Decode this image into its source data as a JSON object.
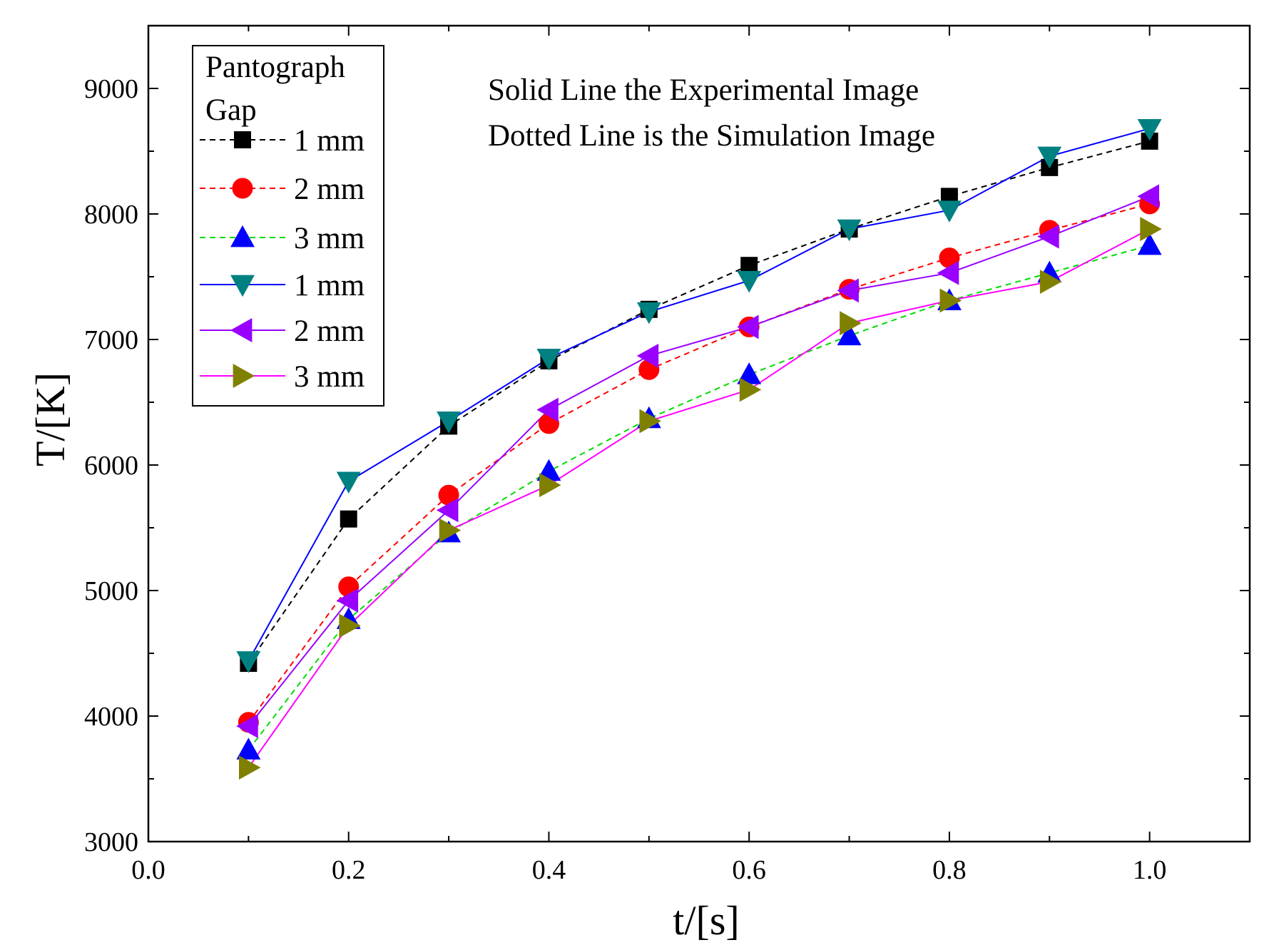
{
  "chart_data": {
    "type": "line",
    "xlabel": "t/[s]",
    "ylabel": "T/[K]",
    "xlim": [
      0.0,
      1.1
    ],
    "ylim": [
      3000,
      9500
    ],
    "x_ticks": [
      "0.0",
      "0.2",
      "0.4",
      "0.6",
      "0.8",
      "1.0"
    ],
    "y_ticks": [
      "3000",
      "4000",
      "5000",
      "6000",
      "7000",
      "8000",
      "9000"
    ],
    "legend_title": [
      "Pantograph",
      "Gap"
    ],
    "legend_position": "top-left",
    "annotations": [
      "Solid Line the  Experimental Image",
      "Dotted Line is the Simulation Image"
    ],
    "x": [
      0.1,
      0.2,
      0.3,
      0.4,
      0.5,
      0.6,
      0.7,
      0.8,
      0.9,
      1.0
    ],
    "series": [
      {
        "name": "1 mm",
        "color": "#000000",
        "marker": "square",
        "dashed": true,
        "values": [
          4420,
          5570,
          6310,
          6830,
          7240,
          7590,
          7880,
          8140,
          8370,
          8580
        ]
      },
      {
        "name": "2 mm",
        "color": "#ff0000",
        "marker": "circle",
        "dashed": true,
        "values": [
          3950,
          5030,
          5760,
          6330,
          6760,
          7100,
          7400,
          7650,
          7870,
          8080
        ]
      },
      {
        "name": "3 mm",
        "color": "#0000ff",
        "line_color": "#00dd00",
        "marker": "triangle-up",
        "dashed": true,
        "values": [
          3730,
          4770,
          5460,
          5950,
          6370,
          6720,
          7030,
          7310,
          7530,
          7750
        ]
      },
      {
        "name": "1 mm",
        "color": "#008080",
        "line_color": "#0000ff",
        "marker": "triangle-down",
        "dashed": false,
        "values": [
          4440,
          5870,
          6350,
          6850,
          7220,
          7470,
          7880,
          8030,
          8460,
          8680
        ]
      },
      {
        "name": "2 mm",
        "color": "#9900ff",
        "marker": "triangle-left",
        "dashed": false,
        "values": [
          3920,
          4920,
          5640,
          6440,
          6870,
          7100,
          7390,
          7530,
          7820,
          8140
        ]
      },
      {
        "name": "3 mm",
        "color": "#808000",
        "line_color": "#ff00ff",
        "marker": "triangle-right",
        "dashed": false,
        "values": [
          3590,
          4720,
          5480,
          5840,
          6350,
          6600,
          7130,
          7310,
          7460,
          7880
        ]
      }
    ]
  }
}
